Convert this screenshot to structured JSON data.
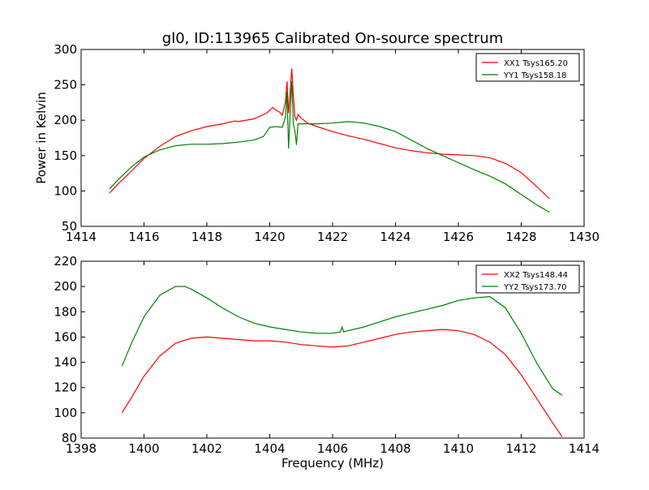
{
  "chart_data": [
    {
      "type": "line",
      "title": "gl0, ID:113965 Calibrated On-source spectrum",
      "xlabel": "",
      "ylabel": "Power in Kelvin",
      "xlim": [
        1414,
        1430
      ],
      "ylim": [
        50,
        300
      ],
      "xticks": [
        1414,
        1416,
        1418,
        1420,
        1422,
        1424,
        1426,
        1428,
        1430
      ],
      "yticks": [
        50,
        100,
        150,
        200,
        250,
        300
      ],
      "grid": false,
      "legend_position": "top-right",
      "series": [
        {
          "name": "XX1 Tsys165.20",
          "color": "#ff0000",
          "x": [
            1414.9,
            1415.2,
            1415.6,
            1416.0,
            1416.5,
            1417.0,
            1417.5,
            1418.0,
            1418.5,
            1418.9,
            1419.0,
            1419.5,
            1419.9,
            1420.1,
            1420.2,
            1420.3,
            1420.4,
            1420.5,
            1420.55,
            1420.6,
            1420.65,
            1420.7,
            1420.75,
            1420.8,
            1420.85,
            1420.9,
            1421.0,
            1421.2,
            1421.5,
            1422.0,
            1422.5,
            1423.0,
            1423.5,
            1424.0,
            1424.5,
            1425.0,
            1425.5,
            1426.0,
            1426.5,
            1427.0,
            1427.5,
            1428.0,
            1428.5,
            1428.9
          ],
          "y": [
            97,
            111,
            128,
            146,
            163,
            177,
            185,
            191,
            195,
            199,
            198,
            202,
            210,
            218,
            214,
            212,
            207,
            226,
            255,
            210,
            240,
            273,
            235,
            205,
            200,
            208,
            203,
            196,
            191,
            184,
            178,
            173,
            167,
            161,
            157,
            154,
            152,
            151,
            150,
            147,
            139,
            126,
            106,
            89
          ]
        },
        {
          "name": "YY1 Tsys158.18",
          "color": "#008000",
          "x": [
            1414.9,
            1415.2,
            1415.6,
            1416.0,
            1416.5,
            1417.0,
            1417.5,
            1418.0,
            1418.5,
            1419.0,
            1419.5,
            1419.8,
            1420.0,
            1420.2,
            1420.4,
            1420.5,
            1420.55,
            1420.6,
            1420.65,
            1420.7,
            1420.75,
            1420.8,
            1420.85,
            1420.9,
            1421.0,
            1421.5,
            1422.0,
            1422.5,
            1423.0,
            1423.5,
            1424.0,
            1424.5,
            1425.0,
            1425.5,
            1426.0,
            1426.5,
            1427.0,
            1427.5,
            1428.0,
            1428.5,
            1428.9
          ],
          "y": [
            103,
            117,
            134,
            148,
            158,
            164,
            166,
            166,
            167,
            169,
            172,
            177,
            190,
            191,
            190,
            205,
            240,
            160,
            210,
            255,
            195,
            185,
            165,
            195,
            195,
            195,
            196,
            198,
            196,
            191,
            184,
            172,
            160,
            150,
            140,
            130,
            121,
            110,
            95,
            80,
            70
          ]
        }
      ]
    },
    {
      "type": "line",
      "title": "",
      "xlabel": "Frequency (MHz)",
      "ylabel": "",
      "xlim": [
        1398,
        1414
      ],
      "ylim": [
        80,
        220
      ],
      "xticks": [
        1398,
        1400,
        1402,
        1404,
        1406,
        1408,
        1410,
        1412,
        1414
      ],
      "yticks": [
        80,
        100,
        120,
        140,
        160,
        180,
        200,
        220
      ],
      "grid": false,
      "legend_position": "top-right",
      "series": [
        {
          "name": "XX2 Tsys148.44",
          "color": "#ff0000",
          "x": [
            1399.3,
            1399.6,
            1400.0,
            1400.5,
            1401.0,
            1401.5,
            1402.0,
            1402.5,
            1403.0,
            1403.5,
            1404.0,
            1404.5,
            1405.0,
            1405.5,
            1406.0,
            1406.5,
            1407.0,
            1407.5,
            1408.0,
            1408.5,
            1409.0,
            1409.5,
            1410.0,
            1410.5,
            1411.0,
            1411.5,
            1412.0,
            1412.5,
            1413.0,
            1413.3
          ],
          "y": [
            100,
            112,
            129,
            145,
            155,
            159,
            160,
            159,
            158,
            157,
            157,
            156,
            154,
            153,
            152,
            153,
            156,
            159,
            162,
            164,
            165,
            166,
            165,
            162,
            156,
            146,
            130,
            111,
            92,
            81
          ]
        },
        {
          "name": "YY2 Tsys173.70",
          "color": "#008000",
          "x": [
            1399.3,
            1399.6,
            1400.0,
            1400.5,
            1401.0,
            1401.3,
            1401.5,
            1402.0,
            1402.5,
            1403.0,
            1403.5,
            1404.0,
            1404.5,
            1405.0,
            1405.5,
            1406.0,
            1406.25,
            1406.3,
            1406.35,
            1406.5,
            1407.0,
            1407.5,
            1408.0,
            1408.5,
            1409.0,
            1409.5,
            1410.0,
            1410.5,
            1411.0,
            1411.5,
            1412.0,
            1412.5,
            1413.0,
            1413.3
          ],
          "y": [
            137,
            155,
            176,
            193,
            200,
            200,
            198,
            191,
            183,
            176,
            171,
            168,
            166,
            164,
            163,
            163,
            164,
            168,
            164,
            165,
            168,
            172,
            176,
            179,
            182,
            185,
            189,
            191,
            192,
            183,
            163,
            139,
            119,
            114
          ]
        }
      ]
    }
  ]
}
